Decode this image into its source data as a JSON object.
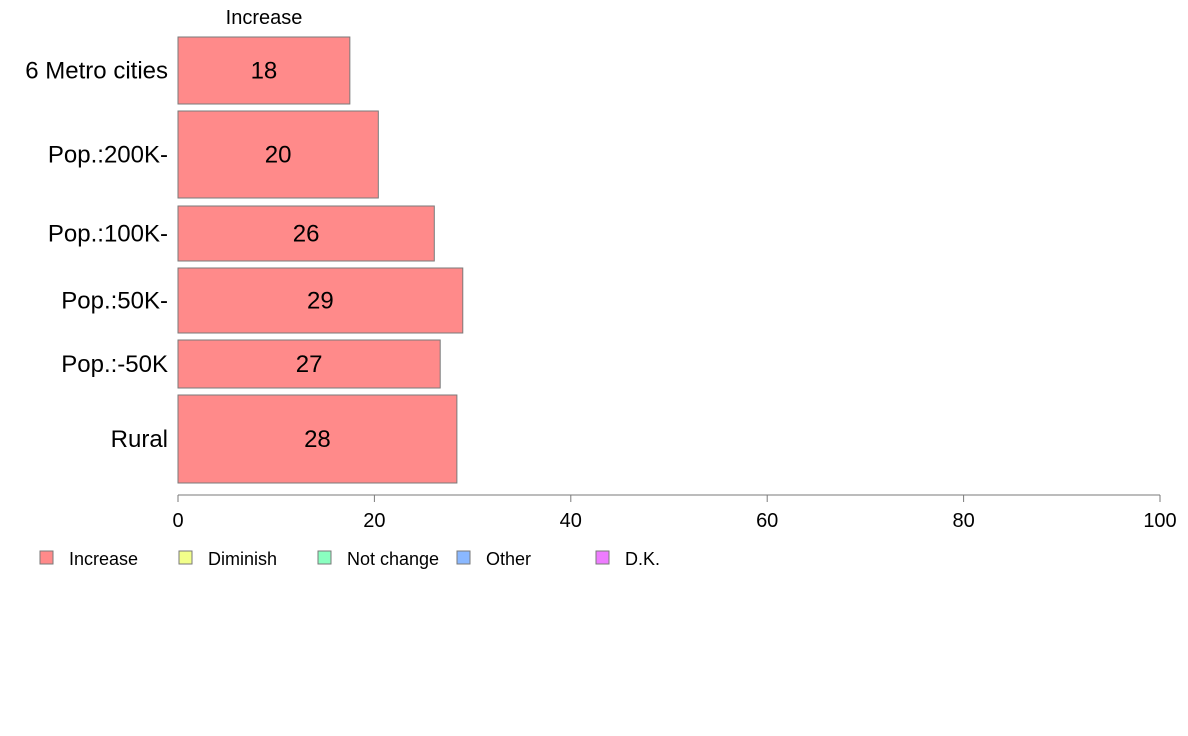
{
  "chart_data": {
    "type": "bar",
    "orientation": "horizontal",
    "stacked": true,
    "categories": [
      "6 Metro cities",
      "Pop.:200K-",
      "Pop.:100K-",
      "Pop.:50K-",
      "Pop.:-50K",
      "Rural"
    ],
    "series": [
      {
        "name": "Increase",
        "values": [
          17.5,
          20.4,
          26.1,
          29.0,
          26.7,
          28.4
        ],
        "labels": [
          "18",
          "20",
          "26",
          "29",
          "27",
          "28"
        ],
        "color": "#ff8a8a"
      }
    ],
    "segment_header": "Increase",
    "xlim": [
      0,
      100
    ],
    "x_ticks": [
      "0",
      "20",
      "40",
      "60",
      "80",
      "100"
    ],
    "xlabel": "",
    "ylabel": "",
    "grid": false,
    "legend": {
      "placement": "bottom-left",
      "items": [
        {
          "label": "Increase",
          "color": "#ff8a8a"
        },
        {
          "label": "Diminish",
          "color": "#f2ff8a"
        },
        {
          "label": "Not change",
          "color": "#8affc0"
        },
        {
          "label": "Other",
          "color": "#8ab8ff"
        },
        {
          "label": "D.K.",
          "color": "#ee7cff"
        }
      ]
    }
  }
}
